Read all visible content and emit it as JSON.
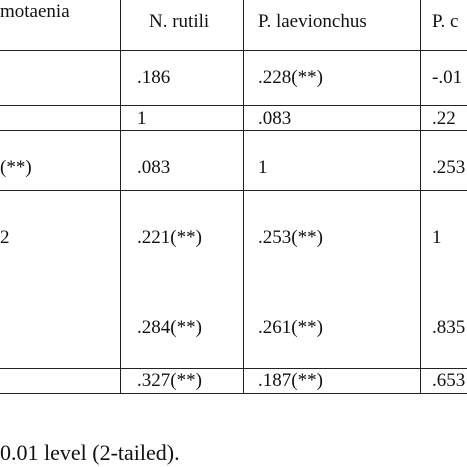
{
  "table": {
    "header": [
      "motaenia",
      "N. rutili",
      "P. laevionchus",
      "P. c"
    ],
    "rows": [
      [
        null,
        ".186",
        ".228(**)",
        "-.01"
      ],
      [
        null,
        "1",
        ".083",
        ".22"
      ],
      [
        "(**)",
        ".083",
        "1",
        ".253"
      ],
      [
        "2",
        ".221(**)",
        ".253(**)",
        "1"
      ],
      [
        null,
        ".284(**)",
        ".261(**)",
        ".835"
      ],
      [
        null,
        ".327(**)",
        ".187(**)",
        ".653"
      ]
    ]
  },
  "footnote": "0.01 level (2-tailed)."
}
